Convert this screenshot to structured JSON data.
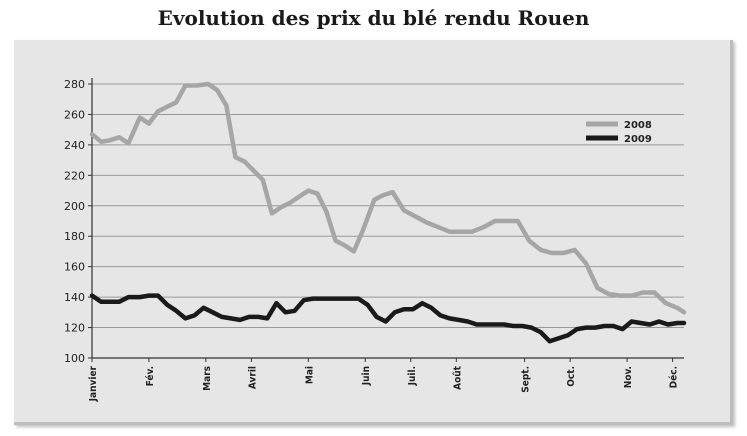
{
  "chart_data": {
    "type": "line",
    "title": "Evolution des prix du blé rendu Rouen",
    "xlabel": "",
    "ylabel": "",
    "ylim": [
      100,
      280
    ],
    "yticks": [
      100,
      120,
      140,
      160,
      180,
      200,
      220,
      240,
      260,
      280
    ],
    "grid": true,
    "legend_position": "top-right",
    "x_ticks": [
      {
        "label": "Janvier",
        "week": 0
      },
      {
        "label": "Fév.",
        "week": 5
      },
      {
        "label": "Mars",
        "week": 10
      },
      {
        "label": "Avril",
        "week": 14
      },
      {
        "label": "Mai",
        "week": 19
      },
      {
        "label": "Juin",
        "week": 24
      },
      {
        "label": "Juil.",
        "week": 28
      },
      {
        "label": "Août",
        "week": 32
      },
      {
        "label": "Sept.",
        "week": 38
      },
      {
        "label": "Oct.",
        "week": 42
      },
      {
        "label": "Nov.",
        "week": 47
      },
      {
        "label": "Déc.",
        "week": 51
      }
    ],
    "x_range": [
      0,
      52
    ],
    "series": [
      {
        "name": "2008",
        "color": "#a6a6a6",
        "points": [
          [
            0,
            247
          ],
          [
            0.8,
            242
          ],
          [
            1.6,
            243
          ],
          [
            2.4,
            245
          ],
          [
            3.2,
            241
          ],
          [
            4.2,
            258
          ],
          [
            5,
            254
          ],
          [
            5.8,
            262
          ],
          [
            6.6,
            265
          ],
          [
            7.4,
            268
          ],
          [
            8.2,
            279
          ],
          [
            9.2,
            279
          ],
          [
            10.2,
            280
          ],
          [
            11,
            276
          ],
          [
            11.8,
            266
          ],
          [
            12.6,
            232
          ],
          [
            13.4,
            229
          ],
          [
            14.2,
            223
          ],
          [
            15,
            217
          ],
          [
            15.8,
            195
          ],
          [
            16.6,
            199
          ],
          [
            17.4,
            202
          ],
          [
            18.2,
            206
          ],
          [
            19,
            210
          ],
          [
            19.8,
            208
          ],
          [
            20.6,
            196
          ],
          [
            21.4,
            177
          ],
          [
            22.2,
            174
          ],
          [
            23,
            170
          ],
          [
            23.8,
            184
          ],
          [
            24.8,
            204
          ],
          [
            25.6,
            207
          ],
          [
            26.4,
            209
          ],
          [
            27.4,
            197
          ],
          [
            28.4,
            193
          ],
          [
            29.4,
            189
          ],
          [
            30.4,
            186
          ],
          [
            31.4,
            183
          ],
          [
            32.4,
            183
          ],
          [
            33.4,
            183
          ],
          [
            34.4,
            186
          ],
          [
            35.4,
            190
          ],
          [
            36.4,
            190
          ],
          [
            37.4,
            190
          ],
          [
            38.4,
            177
          ],
          [
            39.4,
            171
          ],
          [
            40.4,
            169
          ],
          [
            41.4,
            169
          ],
          [
            42.4,
            171
          ],
          [
            43.4,
            162
          ],
          [
            44.4,
            146
          ],
          [
            45.4,
            142
          ],
          [
            46.4,
            141
          ],
          [
            47.4,
            141
          ],
          [
            48.4,
            143
          ],
          [
            49.4,
            143
          ],
          [
            50.4,
            136
          ],
          [
            51.4,
            133
          ],
          [
            52,
            130
          ]
        ]
      },
      {
        "name": "2009",
        "color": "#1a1a1a",
        "points": [
          [
            0,
            141
          ],
          [
            0.8,
            137
          ],
          [
            1.6,
            137
          ],
          [
            2.4,
            137
          ],
          [
            3.2,
            140
          ],
          [
            4.2,
            140
          ],
          [
            5,
            141
          ],
          [
            5.8,
            141
          ],
          [
            6.6,
            135
          ],
          [
            7.4,
            131
          ],
          [
            8.2,
            126
          ],
          [
            9,
            128
          ],
          [
            9.8,
            133
          ],
          [
            10.6,
            130
          ],
          [
            11.4,
            127
          ],
          [
            12.2,
            126
          ],
          [
            13,
            125
          ],
          [
            13.8,
            127
          ],
          [
            14.6,
            127
          ],
          [
            15.4,
            126
          ],
          [
            16.2,
            136
          ],
          [
            17,
            130
          ],
          [
            17.8,
            131
          ],
          [
            18.6,
            138
          ],
          [
            19.4,
            139
          ],
          [
            20.2,
            139
          ],
          [
            21,
            139
          ],
          [
            21.8,
            139
          ],
          [
            22.6,
            139
          ],
          [
            23.4,
            139
          ],
          [
            24.2,
            135
          ],
          [
            25,
            127
          ],
          [
            25.8,
            124
          ],
          [
            26.6,
            130
          ],
          [
            27.4,
            132
          ],
          [
            28.2,
            132
          ],
          [
            29,
            136
          ],
          [
            29.8,
            133
          ],
          [
            30.6,
            128
          ],
          [
            31.4,
            126
          ],
          [
            32.2,
            125
          ],
          [
            33,
            124
          ],
          [
            33.8,
            122
          ],
          [
            34.6,
            122
          ],
          [
            35.4,
            122
          ],
          [
            36.2,
            122
          ],
          [
            37,
            121
          ],
          [
            37.8,
            121
          ],
          [
            38.6,
            120
          ],
          [
            39.4,
            117
          ],
          [
            40.2,
            111
          ],
          [
            41,
            113
          ],
          [
            41.8,
            115
          ],
          [
            42.6,
            119
          ],
          [
            43.4,
            120
          ],
          [
            44.2,
            120
          ],
          [
            45,
            121
          ],
          [
            45.8,
            121
          ],
          [
            46.6,
            119
          ],
          [
            47.4,
            124
          ],
          [
            48.2,
            123
          ],
          [
            49,
            122
          ],
          [
            49.8,
            124
          ],
          [
            50.6,
            122
          ],
          [
            51.4,
            123
          ],
          [
            52,
            123
          ]
        ]
      }
    ]
  }
}
